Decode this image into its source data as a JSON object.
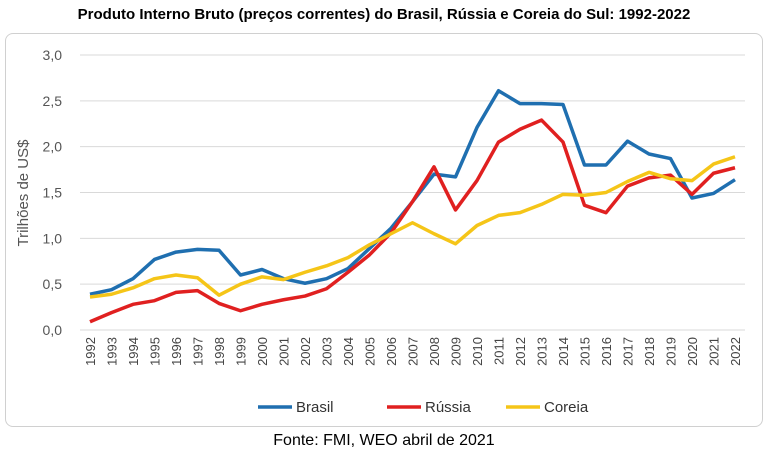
{
  "chart_data": {
    "type": "line",
    "title": "Produto Interno Bruto (preços correntes) do Brasil, Rússia e Coreia do Sul: 1992-2022",
    "xlabel": "",
    "ylabel": "Trilhões de US$",
    "ylim": [
      0,
      3
    ],
    "yticks": [
      "0,0",
      "0,5",
      "1,0",
      "1,5",
      "2,0",
      "2,5",
      "3,0"
    ],
    "grid": true,
    "legend": "bottom",
    "source": "Fonte: FMI, WEO abril de 2021",
    "categories": [
      "1992",
      "1993",
      "1994",
      "1995",
      "1996",
      "1997",
      "1998",
      "1999",
      "2000",
      "2001",
      "2002",
      "2003",
      "2004",
      "2005",
      "2006",
      "2007",
      "2008",
      "2009",
      "2010",
      "2011",
      "2012",
      "2013",
      "2014",
      "2015",
      "2016",
      "2017",
      "2018",
      "2019",
      "2020",
      "2021",
      "2022"
    ],
    "series": [
      {
        "name": "Brasil",
        "color": "#1f6fb0",
        "values": [
          0.39,
          0.44,
          0.56,
          0.77,
          0.85,
          0.88,
          0.87,
          0.6,
          0.66,
          0.56,
          0.51,
          0.56,
          0.67,
          0.89,
          1.11,
          1.4,
          1.7,
          1.67,
          2.21,
          2.61,
          2.47,
          2.47,
          2.46,
          1.8,
          1.8,
          2.06,
          1.92,
          1.87,
          1.44,
          1.49,
          1.64
        ]
      },
      {
        "name": "Rússia",
        "color": "#e02020",
        "values": [
          0.09,
          0.19,
          0.28,
          0.32,
          0.41,
          0.43,
          0.29,
          0.21,
          0.28,
          0.33,
          0.37,
          0.45,
          0.63,
          0.82,
          1.06,
          1.4,
          1.78,
          1.31,
          1.63,
          2.05,
          2.19,
          2.29,
          2.05,
          1.36,
          1.28,
          1.57,
          1.66,
          1.69,
          1.48,
          1.71,
          1.77
        ]
      },
      {
        "name": "Coreia",
        "color": "#f5c518",
        "values": [
          0.36,
          0.39,
          0.46,
          0.56,
          0.6,
          0.57,
          0.38,
          0.5,
          0.58,
          0.55,
          0.63,
          0.7,
          0.79,
          0.93,
          1.05,
          1.17,
          1.05,
          0.94,
          1.14,
          1.25,
          1.28,
          1.37,
          1.48,
          1.47,
          1.5,
          1.62,
          1.72,
          1.65,
          1.63,
          1.81,
          1.89
        ]
      }
    ]
  }
}
